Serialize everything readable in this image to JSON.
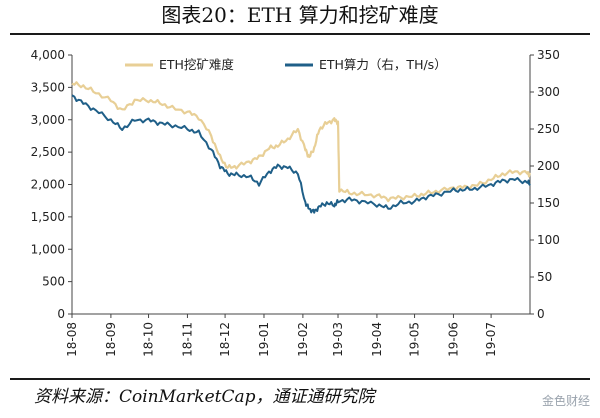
{
  "title": "图表20：ETH 算力和挖矿难度",
  "source": "资料来源：CoinMarketCap，通证通研究院",
  "watermark": "金色财经",
  "chart_data": {
    "type": "line",
    "x": [
      "18-08",
      "18-09",
      "18-10",
      "18-11",
      "18-12",
      "19-01",
      "19-02",
      "19-03",
      "19-04",
      "19-05",
      "19-06",
      "19-07"
    ],
    "xlim": [
      "18-08",
      "19-08"
    ],
    "y_left": {
      "ticks": [
        "0",
        "500",
        "1,000",
        "1,500",
        "2,000",
        "2,500",
        "3,000",
        "3,500",
        "4,000"
      ],
      "ylim": [
        0,
        4000
      ]
    },
    "y_right": {
      "ticks": [
        "0",
        "50",
        "100",
        "150",
        "200",
        "250",
        "300",
        "350"
      ],
      "ylim": [
        0,
        350
      ]
    },
    "legend_position": "top",
    "series": [
      {
        "name": "ETH挖矿难度",
        "axis": "left",
        "color": "#e8cf96",
        "values": [
          [
            "18-08-01",
            3560
          ],
          [
            "18-08-10",
            3520
          ],
          [
            "18-08-20",
            3420
          ],
          [
            "18-09-01",
            3300
          ],
          [
            "18-09-10",
            3140
          ],
          [
            "18-09-20",
            3300
          ],
          [
            "18-10-01",
            3300
          ],
          [
            "18-10-10",
            3260
          ],
          [
            "18-10-20",
            3180
          ],
          [
            "18-11-01",
            3120
          ],
          [
            "18-11-10",
            3040
          ],
          [
            "18-11-20",
            2750
          ],
          [
            "18-11-27",
            2420
          ],
          [
            "18-12-03",
            2260
          ],
          [
            "18-12-10",
            2280
          ],
          [
            "18-12-20",
            2350
          ],
          [
            "18-12-28",
            2420
          ],
          [
            "19-01-05",
            2560
          ],
          [
            "19-01-12",
            2600
          ],
          [
            "19-01-20",
            2700
          ],
          [
            "19-01-28",
            2850
          ],
          [
            "19-02-03",
            2540
          ],
          [
            "19-02-06",
            2420
          ],
          [
            "19-02-10",
            2560
          ],
          [
            "19-02-14",
            2850
          ],
          [
            "19-02-20",
            2950
          ],
          [
            "19-02-26",
            3000
          ],
          [
            "19-03-01",
            2960
          ],
          [
            "19-03-02",
            1920
          ],
          [
            "19-03-10",
            1870
          ],
          [
            "19-03-20",
            1850
          ],
          [
            "19-04-01",
            1830
          ],
          [
            "19-04-10",
            1780
          ],
          [
            "19-04-20",
            1800
          ],
          [
            "19-05-01",
            1820
          ],
          [
            "19-05-10",
            1860
          ],
          [
            "19-05-20",
            1900
          ],
          [
            "19-06-01",
            1950
          ],
          [
            "19-06-10",
            1960
          ],
          [
            "19-06-20",
            1990
          ],
          [
            "19-07-01",
            2080
          ],
          [
            "19-07-10",
            2160
          ],
          [
            "19-07-20",
            2200
          ],
          [
            "19-07-30",
            2180
          ],
          [
            "19-08-01",
            2150
          ]
        ]
      },
      {
        "name": "ETH算力（右，TH/s）",
        "axis": "right",
        "color": "#1f5f88",
        "values": [
          [
            "18-08-01",
            295
          ],
          [
            "18-08-10",
            285
          ],
          [
            "18-08-20",
            275
          ],
          [
            "18-09-01",
            262
          ],
          [
            "18-09-10",
            250
          ],
          [
            "18-09-20",
            262
          ],
          [
            "18-10-01",
            262
          ],
          [
            "18-10-10",
            258
          ],
          [
            "18-10-20",
            255
          ],
          [
            "18-11-01",
            250
          ],
          [
            "18-11-10",
            245
          ],
          [
            "18-11-20",
            222
          ],
          [
            "18-11-27",
            200
          ],
          [
            "18-12-03",
            190
          ],
          [
            "18-12-10",
            188
          ],
          [
            "18-12-20",
            186
          ],
          [
            "18-12-28",
            176
          ],
          [
            "19-01-05",
            192
          ],
          [
            "19-01-12",
            200
          ],
          [
            "19-01-20",
            198
          ],
          [
            "19-01-28",
            190
          ],
          [
            "19-02-03",
            150
          ],
          [
            "19-02-06",
            142
          ],
          [
            "19-02-10",
            138
          ],
          [
            "19-02-14",
            145
          ],
          [
            "19-02-20",
            150
          ],
          [
            "19-02-26",
            147
          ],
          [
            "19-03-01",
            152
          ],
          [
            "19-03-10",
            155
          ],
          [
            "19-03-20",
            152
          ],
          [
            "19-04-01",
            148
          ],
          [
            "19-04-10",
            143
          ],
          [
            "19-04-20",
            150
          ],
          [
            "19-05-01",
            152
          ],
          [
            "19-05-10",
            158
          ],
          [
            "19-05-20",
            162
          ],
          [
            "19-06-01",
            167
          ],
          [
            "19-06-10",
            168
          ],
          [
            "19-06-20",
            170
          ],
          [
            "19-07-01",
            175
          ],
          [
            "19-07-10",
            180
          ],
          [
            "19-07-20",
            182
          ],
          [
            "19-07-30",
            178
          ],
          [
            "19-08-01",
            176
          ]
        ]
      }
    ]
  }
}
